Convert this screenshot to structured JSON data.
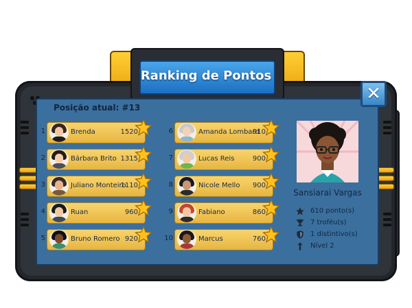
{
  "title": "Ranking de Pontos",
  "close_label": "✕",
  "position_text": "Posição atual: #13",
  "ranking": [
    {
      "rank": "1",
      "name": "Brenda",
      "score": "1520",
      "hair": "#3a2418",
      "skin": "#f0c8a8",
      "shirt": "#1c1c1c"
    },
    {
      "rank": "2",
      "name": "Bárbara Brito",
      "score": "1315",
      "hair": "#2a1a12",
      "skin": "#f2cfb1",
      "shirt": "#4b4f57"
    },
    {
      "rank": "3",
      "name": "Juliano Monteiro",
      "score": "1110",
      "hair": "#3b2b1e",
      "skin": "#e7b38f",
      "shirt": "#7a5a3a"
    },
    {
      "rank": "4",
      "name": "Ruan",
      "score": "960",
      "hair": "#1a1a1a",
      "skin": "#f1c9a4",
      "shirt": "#3d4a5c"
    },
    {
      "rank": "5",
      "name": "Bruno Romero",
      "score": "920",
      "hair": "#111111",
      "skin": "#7a4a2f",
      "shirt": "#3a8f6e"
    },
    {
      "rank": "6",
      "name": "Amanda Lombard",
      "score": "910",
      "hair": "#c9c9c9",
      "skin": "#f2d2b8",
      "shirt": "#8fb7c9"
    },
    {
      "rank": "7",
      "name": "Lucas Reis",
      "score": "900",
      "hair": "#cfcfcf",
      "skin": "#f0c9a6",
      "shirt": "#6fb548"
    },
    {
      "rank": "8",
      "name": "Nicole Mello",
      "score": "900",
      "hair": "#1a1a1a",
      "skin": "#c99873",
      "shirt": "#2b2b2b"
    },
    {
      "rank": "9",
      "name": "Fabiano",
      "score": "860",
      "hair": "#c4472c",
      "skin": "#f2c6a4",
      "shirt": "#2c2c2c"
    },
    {
      "rank": "10",
      "name": "Marcus",
      "score": "760",
      "hair": "#201510",
      "skin": "#8c5a3c",
      "shirt": "#a83838"
    }
  ],
  "profile": {
    "name": "Sansiarai Vargas",
    "points": "610 ponto(s)",
    "trophies": "7 troféu(s)",
    "badges": "1 distintivo(s)",
    "level": "Nível 2"
  },
  "colors": {
    "panel": "#3b6f9e",
    "row": "#f0c555",
    "title_plate": "#2e86d6",
    "frame": "#23262b",
    "accent_yellow": "#f5b820"
  }
}
